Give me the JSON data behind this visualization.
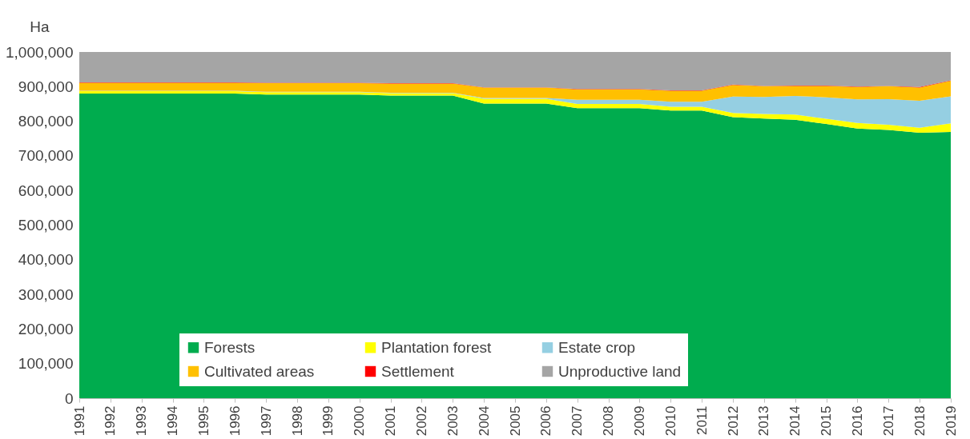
{
  "chart_data": {
    "type": "area",
    "stacked": true,
    "ylabel": "Ha",
    "categories": [
      "1991",
      "1992",
      "1993",
      "1994",
      "1995",
      "1996",
      "1997",
      "1998",
      "1999",
      "2000",
      "2001",
      "2002",
      "2003",
      "2004",
      "2005",
      "2006",
      "2007",
      "2008",
      "2009",
      "2010",
      "2011",
      "2012",
      "2013",
      "2014",
      "2015",
      "2016",
      "2017",
      "2018",
      "2019"
    ],
    "ylim": [
      0,
      1000000
    ],
    "yticks": [
      {
        "value": 0,
        "label": "0"
      },
      {
        "value": 100000,
        "label": "100,000"
      },
      {
        "value": 200000,
        "label": "200,000"
      },
      {
        "value": 300000,
        "label": "300,000"
      },
      {
        "value": 400000,
        "label": "400,000"
      },
      {
        "value": 500000,
        "label": "500,000"
      },
      {
        "value": 600000,
        "label": "600,000"
      },
      {
        "value": 700000,
        "label": "700,000"
      },
      {
        "value": 800000,
        "label": "800,000"
      },
      {
        "value": 900000,
        "label": "900,000"
      },
      {
        "value": 1000000,
        "label": "1,000,000"
      }
    ],
    "grid": false,
    "legend": "bottom",
    "series": [
      {
        "name": "Forests",
        "color": "#00ac4e",
        "values": [
          880000,
          880000,
          880000,
          880000,
          880000,
          880000,
          877000,
          877000,
          877000,
          877000,
          874000,
          874000,
          874000,
          851000,
          851000,
          851000,
          838000,
          838000,
          838000,
          831000,
          831000,
          812000,
          808000,
          804000,
          792000,
          779000,
          775000,
          767000,
          769000
        ]
      },
      {
        "name": "Plantation forest",
        "color": "#ffff00",
        "values": [
          7000,
          7000,
          7000,
          7000,
          7000,
          7000,
          7000,
          7000,
          7000,
          7000,
          7000,
          7000,
          7000,
          14000,
          14000,
          14000,
          12000,
          12000,
          12000,
          11000,
          11000,
          12000,
          13000,
          15000,
          15000,
          16000,
          15000,
          14000,
          25000
        ]
      },
      {
        "name": "Estate crop",
        "color": "#95cfe2",
        "values": [
          1000,
          1000,
          1000,
          1000,
          1000,
          1000,
          1000,
          1000,
          1000,
          1000,
          1000,
          1000,
          1000,
          2000,
          2000,
          2000,
          12000,
          12000,
          12000,
          14000,
          14000,
          47000,
          49000,
          54000,
          62000,
          68000,
          74000,
          78000,
          78000
        ]
      },
      {
        "name": "Cultivated areas",
        "color": "#ffc000",
        "values": [
          23000,
          23000,
          23000,
          23000,
          23000,
          23000,
          25000,
          25000,
          25000,
          25000,
          27000,
          27000,
          27000,
          30000,
          30000,
          30000,
          30000,
          30000,
          30000,
          32000,
          32000,
          34000,
          31000,
          29000,
          33000,
          36000,
          37000,
          38000,
          45000
        ]
      },
      {
        "name": "Settlement",
        "color": "#ff0000",
        "values": [
          1000,
          1000,
          1000,
          1000,
          1000,
          1000,
          1000,
          1000,
          1000,
          1000,
          1000,
          1000,
          1000,
          1000,
          1000,
          1000,
          1000,
          1000,
          1000,
          1000,
          1000,
          1000,
          1000,
          1000,
          1000,
          1000,
          1000,
          2000,
          1000
        ]
      },
      {
        "name": "Unproductive land",
        "color": "#a5a5a5",
        "values": [
          88000,
          88000,
          88000,
          88000,
          88000,
          88000,
          89000,
          89000,
          89000,
          89000,
          90000,
          90000,
          90000,
          102000,
          102000,
          102000,
          107000,
          107000,
          107000,
          111000,
          111000,
          94000,
          98000,
          97000,
          97000,
          100000,
          98000,
          101000,
          82000
        ]
      }
    ]
  }
}
